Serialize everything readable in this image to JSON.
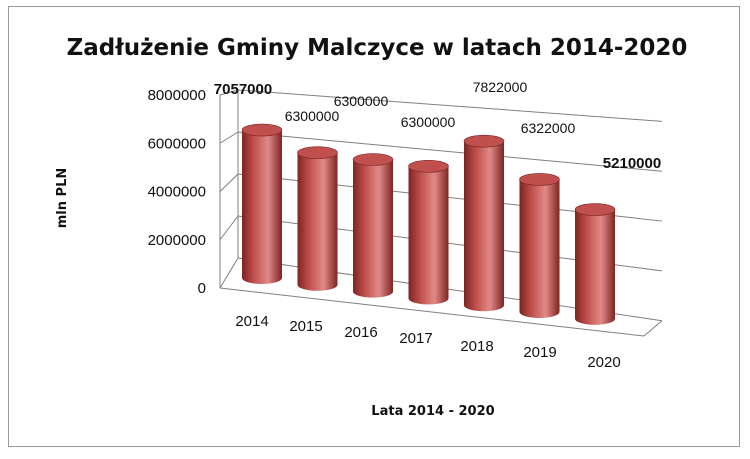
{
  "chart_data": {
    "type": "bar",
    "subtype": "3d-cylinder",
    "title": "Zadłużenie Gminy Malczyce w latach 2014-2020",
    "xlabel": "Lata 2014 - 2020",
    "ylabel": "mln PLN",
    "categories": [
      "2014",
      "2015",
      "2016",
      "2017",
      "2018",
      "2019",
      "2020"
    ],
    "values": [
      7057000,
      6300000,
      6300000,
      6300000,
      7822000,
      6322000,
      5210000
    ],
    "data_labels": [
      "7057000",
      "6300000",
      "6300000",
      "6300000",
      "7822000",
      "6322000",
      "5210000"
    ],
    "highlighted_labels": [
      "2014",
      "2020"
    ],
    "ylim": [
      0,
      8000000
    ],
    "yticks": [
      "0",
      "2000000",
      "4000000",
      "6000000",
      "8000000"
    ],
    "grid": true,
    "legend": "none",
    "colors": {
      "bar": "#c0504d",
      "bar_dark": "#7e2422",
      "bar_light": "#e08a87",
      "highlight_label": "#ff0000",
      "label": "#111111",
      "grid": "#7f7f7f"
    }
  }
}
